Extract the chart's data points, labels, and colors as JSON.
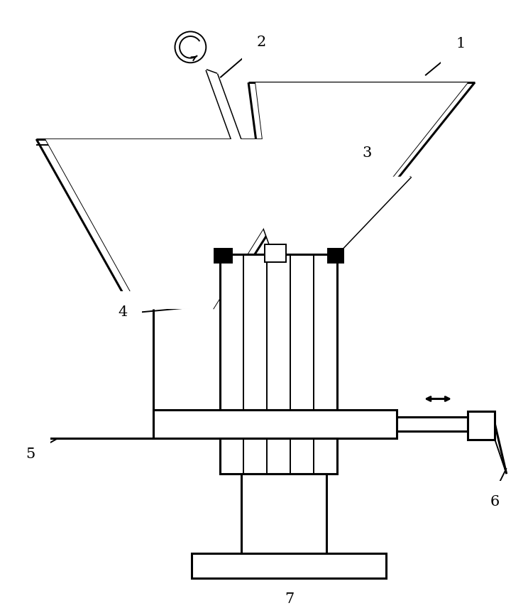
{
  "bg_color": "#ffffff",
  "line_color": "#000000",
  "figsize": [
    7.44,
    8.63
  ],
  "dpi": 100,
  "lw_thick": 2.2,
  "lw_thin": 1.4
}
